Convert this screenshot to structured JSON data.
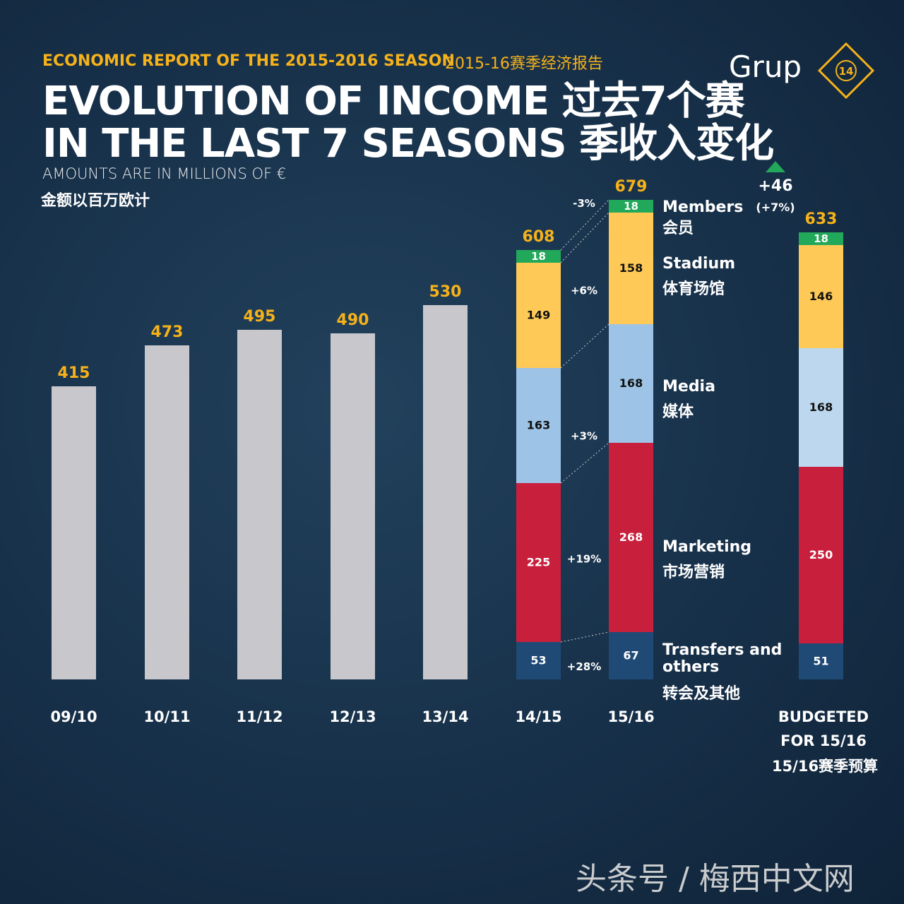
{
  "header": {
    "kicker": "ECONOMIC REPORT OF THE 2015-2016 SEASON",
    "kicker_cn": "2015-16赛季经济报告",
    "title_line1": "EVOLUTION OF INCOME 过去7个赛",
    "title_line2": "IN THE LAST 7 SEASONS 季收入变化",
    "subtitle": "AMOUNTS ARE IN MILLIONS OF €",
    "subtitle_cn": "金额以百万欧计"
  },
  "logo": {
    "text": "Grup",
    "badge": "14"
  },
  "watermark": "头条号 / 梅西中文网",
  "colors": {
    "gray": "#c8c8cc",
    "members": "#22a85a",
    "stadium": "#fec957",
    "media": "#9dc3e6",
    "media_budget": "#bcd7ee",
    "marketing": "#c8203c",
    "transfers": "#1f4a75",
    "total_label": "#f6b21a"
  },
  "chart_data": {
    "type": "bar",
    "categories": [
      "09/10",
      "10/11",
      "11/12",
      "12/13",
      "13/14",
      "14/15",
      "15/16",
      "BUDGETED FOR 15/16"
    ],
    "budget_label_cn": "15/16赛季预算",
    "totals": [
      415,
      473,
      495,
      490,
      530,
      608,
      679,
      633
    ],
    "stacked": {
      "categories": [
        "14/15",
        "15/16",
        "BUDGETED FOR 15/16"
      ],
      "series": [
        {
          "name": "Transfers and others",
          "name_cn": "转会及其他",
          "key": "transfers",
          "values": [
            53,
            67,
            51
          ],
          "change": "+28%"
        },
        {
          "name": "Marketing",
          "name_cn": "市场营销",
          "key": "marketing",
          "values": [
            225,
            268,
            250
          ],
          "change": "+19%"
        },
        {
          "name": "Media",
          "name_cn": "媒体",
          "key": "media",
          "values": [
            163,
            168,
            168
          ],
          "change": "+3%"
        },
        {
          "name": "Stadium",
          "name_cn": "体育场馆",
          "key": "stadium",
          "values": [
            149,
            158,
            146
          ],
          "change": "+6%"
        },
        {
          "name": "Members",
          "name_cn": "会员",
          "key": "members",
          "values": [
            18,
            18,
            18
          ],
          "change": "-3%"
        }
      ]
    },
    "difference": {
      "value": "+46",
      "pct": "(+7%)"
    },
    "ylim": [
      0,
      700
    ]
  }
}
